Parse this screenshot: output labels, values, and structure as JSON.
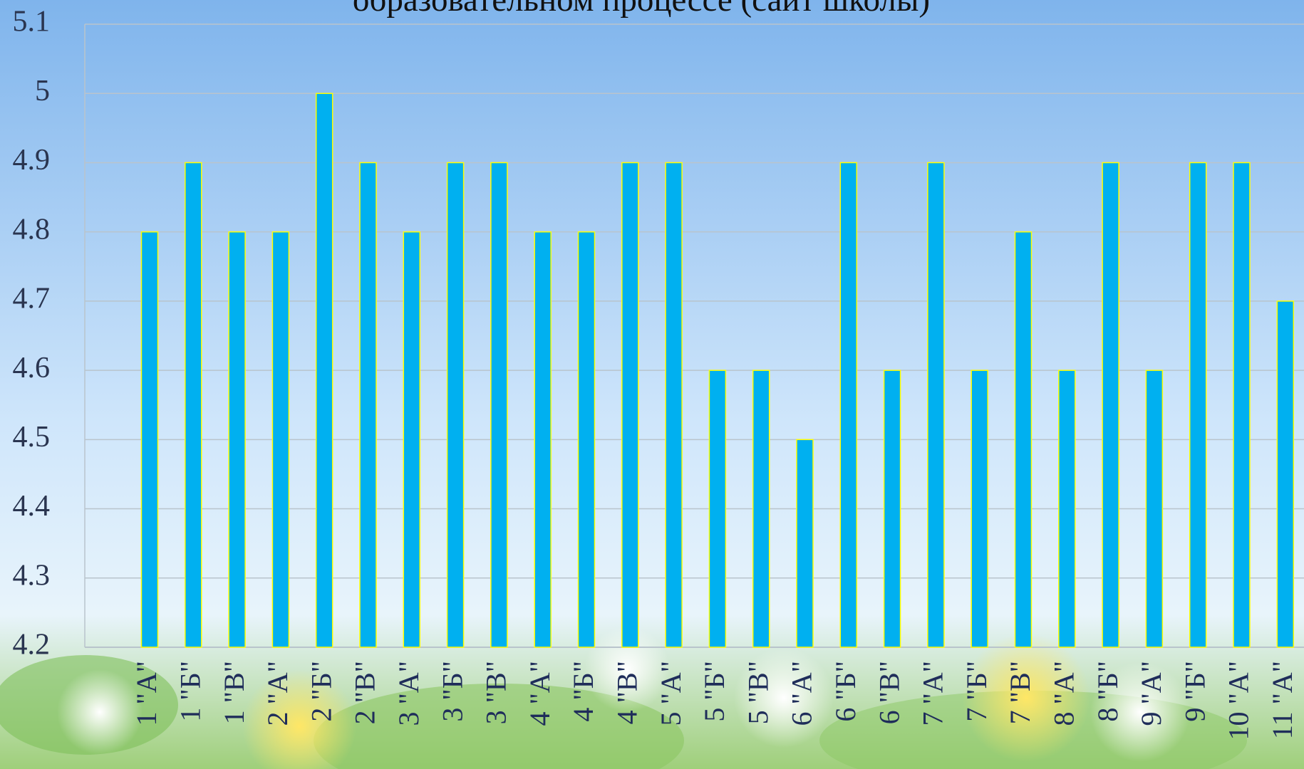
{
  "chart_data": {
    "type": "bar",
    "title": "образовательном процессе (сайт школы)",
    "categories": [
      "1 \"А\"",
      "1 \"Б\"",
      "1 \"В\"",
      "2 \"А\"",
      "2 \"Б\"",
      "2 \"В\"",
      "3 \"А\"",
      "3 \"Б\"",
      "3 \"В\"",
      "4 \"А\"",
      "4 \"Б\"",
      "4 \"В\"",
      "5 \"А\"",
      "5 \"Б\"",
      "5 \"В\"",
      "6 \"А\"",
      "6 \"Б\"",
      "6 \"В\"",
      "7 \"А\"",
      "7 \"Б\"",
      "7 \"В\"",
      "8 \"А\"",
      "8 \"Б\"",
      "9 \"А\"",
      "9 \"Б\"",
      "10 \"А\"",
      "11 \"А\""
    ],
    "values": [
      4.8,
      4.9,
      4.8,
      4.8,
      5,
      4.9,
      4.8,
      4.9,
      4.9,
      4.8,
      4.8,
      4.9,
      4.9,
      4.6,
      4.6,
      4.5,
      4.9,
      4.6,
      4.9,
      4.6,
      4.8,
      4.6,
      4.9,
      4.6,
      4.9,
      4.9,
      4.7
    ],
    "color": "#00b0f0",
    "edge_color": "#ffff00",
    "ylim": [
      4.2,
      5.1
    ],
    "yticks": [
      4.2,
      4.3,
      4.4,
      4.5,
      4.6,
      4.7,
      4.8,
      4.9,
      5,
      5.1
    ],
    "grid": true
  }
}
